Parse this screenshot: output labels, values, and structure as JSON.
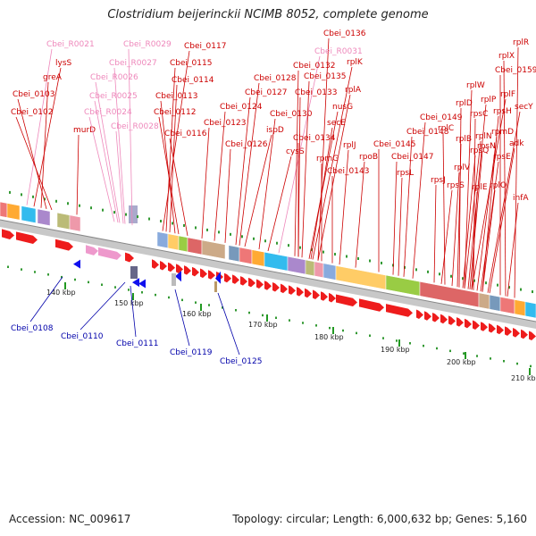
{
  "title": "Clostridium beijerinckii NCIMB 8052, complete genome",
  "footer": {
    "accession": "Accession: NC_009617",
    "summary": "Topology: circular; Length: 6,000,632 bp; Genes: 5,160"
  },
  "colors": {
    "forward_gene": "#ee1c1c",
    "reverse_gene": "#1010ee",
    "rna_label": "#ee88bb",
    "gene_label": "#cc0000",
    "reverse_label": "#0000aa",
    "tick": "#339933",
    "backbone": "#999999"
  },
  "scale_labels": [
    "140 kbp",
    "150 kbp",
    "160 kbp",
    "170 kbp",
    "180 kbp",
    "190 kbp",
    "200 kbp",
    "210 kbp"
  ],
  "top_labels": [
    {
      "text": "Cbei_R0021",
      "kind": "rna"
    },
    {
      "text": "lysS",
      "kind": "gene"
    },
    {
      "text": "greA",
      "kind": "gene"
    },
    {
      "text": "Cbei_0103",
      "kind": "gene"
    },
    {
      "text": "Cbei_0102",
      "kind": "gene"
    },
    {
      "text": "murD",
      "kind": "gene"
    },
    {
      "text": "Cbei_R0029",
      "kind": "rna"
    },
    {
      "text": "Cbei_R0027",
      "kind": "rna"
    },
    {
      "text": "Cbei_R0026",
      "kind": "rna"
    },
    {
      "text": "Cbei_R0025",
      "kind": "rna"
    },
    {
      "text": "Cbei_R0024",
      "kind": "rna"
    },
    {
      "text": "Cbei_R0028",
      "kind": "rna"
    },
    {
      "text": "Cbei_0117",
      "kind": "gene"
    },
    {
      "text": "Cbei_0115",
      "kind": "gene"
    },
    {
      "text": "Cbei_0114",
      "kind": "gene"
    },
    {
      "text": "Cbei_0113",
      "kind": "gene"
    },
    {
      "text": "Cbei_0112",
      "kind": "gene"
    },
    {
      "text": "Cbei_0116",
      "kind": "gene"
    },
    {
      "text": "Cbei_0123",
      "kind": "gene"
    },
    {
      "text": "Cbei_0124",
      "kind": "gene"
    },
    {
      "text": "Cbei_0126",
      "kind": "gene"
    },
    {
      "text": "Cbei_0127",
      "kind": "gene"
    },
    {
      "text": "Cbei_0128",
      "kind": "gene"
    },
    {
      "text": "ispD",
      "kind": "gene"
    },
    {
      "text": "Cbei_0130",
      "kind": "gene"
    },
    {
      "text": "cysS",
      "kind": "gene"
    },
    {
      "text": "Cbei_0136",
      "kind": "gene"
    },
    {
      "text": "Cbei_R0031",
      "kind": "rna"
    },
    {
      "text": "Cbei_0132",
      "kind": "gene"
    },
    {
      "text": "rplK",
      "kind": "gene"
    },
    {
      "text": "Cbei_0135",
      "kind": "gene"
    },
    {
      "text": "rplA",
      "kind": "gene"
    },
    {
      "text": "Cbei_0133",
      "kind": "gene"
    },
    {
      "text": "nusG",
      "kind": "gene"
    },
    {
      "text": "secE",
      "kind": "gene"
    },
    {
      "text": "Cbei_0134",
      "kind": "gene"
    },
    {
      "text": "rpmG",
      "kind": "gene"
    },
    {
      "text": "rplJ",
      "kind": "gene"
    },
    {
      "text": "rpoB",
      "kind": "gene"
    },
    {
      "text": "Cbei_0143",
      "kind": "gene"
    },
    {
      "text": "Cbei_0145",
      "kind": "gene"
    },
    {
      "text": "rpsL",
      "kind": "gene"
    },
    {
      "text": "Cbei_0147",
      "kind": "gene"
    },
    {
      "text": "Cbei_0148",
      "kind": "gene"
    },
    {
      "text": "Cbei_0149",
      "kind": "gene"
    },
    {
      "text": "rplR",
      "kind": "gene"
    },
    {
      "text": "rplX",
      "kind": "gene"
    },
    {
      "text": "Cbei_0159",
      "kind": "gene"
    },
    {
      "text": "rplW",
      "kind": "gene"
    },
    {
      "text": "rplP",
      "kind": "gene"
    },
    {
      "text": "rplF",
      "kind": "gene"
    },
    {
      "text": "rplD",
      "kind": "gene"
    },
    {
      "text": "rpsC",
      "kind": "gene"
    },
    {
      "text": "rpsH",
      "kind": "gene"
    },
    {
      "text": "secY",
      "kind": "gene"
    },
    {
      "text": "rplB",
      "kind": "gene"
    },
    {
      "text": "rplN",
      "kind": "gene"
    },
    {
      "text": "rpmD",
      "kind": "gene"
    },
    {
      "text": "rplC",
      "kind": "gene"
    },
    {
      "text": "rpsQ",
      "kind": "gene"
    },
    {
      "text": "adk",
      "kind": "gene"
    },
    {
      "text": "rplV",
      "kind": "gene"
    },
    {
      "text": "rpsN",
      "kind": "gene"
    },
    {
      "text": "rpsE",
      "kind": "gene"
    },
    {
      "text": "rpsJ",
      "kind": "gene"
    },
    {
      "text": "rpsS",
      "kind": "gene"
    },
    {
      "text": "rplE",
      "kind": "gene"
    },
    {
      "text": "rplO",
      "kind": "gene"
    },
    {
      "text": "infA",
      "kind": "gene"
    }
  ],
  "bottom_labels": [
    {
      "text": "Cbei_0108"
    },
    {
      "text": "Cbei_0110"
    },
    {
      "text": "Cbei_0111"
    },
    {
      "text": "Cbei_0119"
    },
    {
      "text": "Cbei_0125"
    }
  ]
}
